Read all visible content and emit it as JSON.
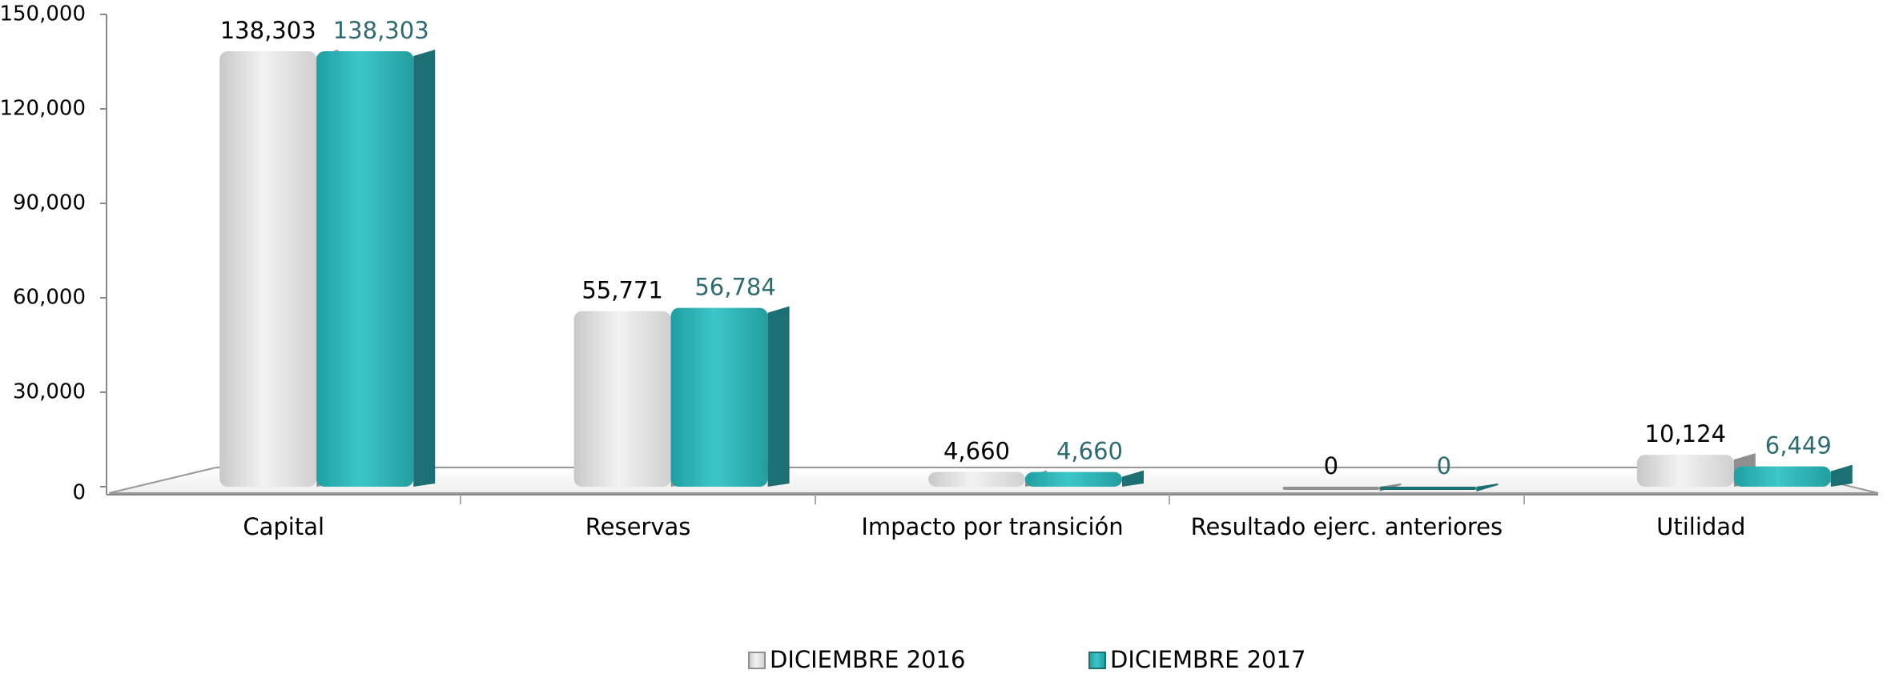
{
  "chart_data": {
    "type": "bar",
    "categories": [
      "Capital",
      "Reservas",
      "Impacto por transición",
      "Resultado ejerc. anteriores",
      "Utilidad"
    ],
    "series": [
      {
        "name": "DICIEMBRE 2016",
        "color": "#d9d9d9",
        "label_color": "#000000",
        "values": [
          138303,
          55771,
          4660,
          0,
          10124
        ],
        "value_labels": [
          "138,303",
          "55,771",
          "4,660",
          "0",
          "10,124"
        ]
      },
      {
        "name": "DICIEMBRE 2017",
        "color": "#2ab3b5",
        "label_color": "#2e6a70",
        "values": [
          138303,
          56784,
          4660,
          0,
          6449
        ],
        "value_labels": [
          "138,303",
          "56,784",
          "4,660",
          "0",
          "6,449"
        ]
      }
    ],
    "ylim": [
      0,
      150000
    ],
    "yticks": [
      0,
      {
        "value": 30000,
        "label": "30,000"
      },
      {
        "value": 60000,
        "label": "60,000"
      },
      {
        "value": 90000,
        "label": "90,000"
      },
      {
        "value": 120000,
        "label": "120,000"
      },
      {
        "value": 150000,
        "label": "150,000"
      }
    ],
    "grid": false,
    "legend": "bottom"
  }
}
